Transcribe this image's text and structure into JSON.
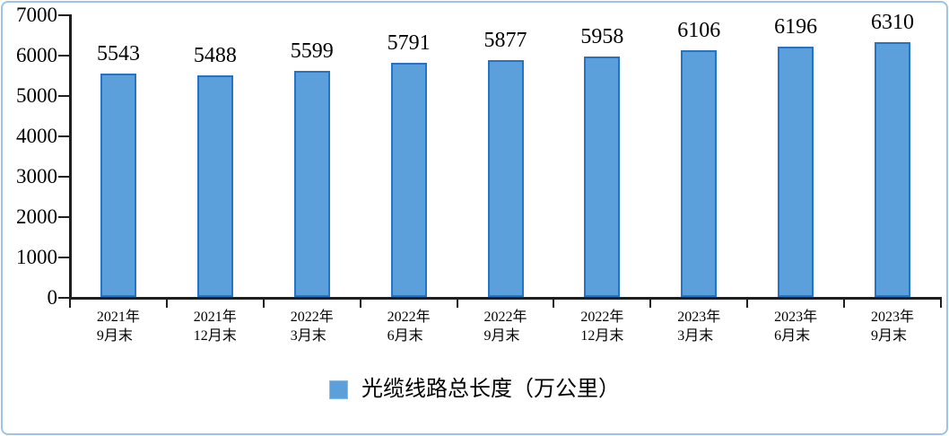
{
  "chart_data": {
    "type": "bar",
    "title": "",
    "categories": [
      "2021年\n9月末",
      "2021年\n12月末",
      "2022年\n3月末",
      "2022年\n6月末",
      "2022年\n9月末",
      "2022年\n12月末",
      "2023年\n3月末",
      "2023年\n6月末",
      "2023年\n9月末"
    ],
    "values": [
      5543,
      5488,
      5599,
      5791,
      5877,
      5958,
      6106,
      6196,
      6310
    ],
    "value_labels": [
      "5543",
      "5488",
      "5599",
      "5791",
      "5877",
      "5958",
      "6106",
      "6196",
      "6310"
    ],
    "legend": "光缆线路总长度（万公里）",
    "legend_position": "bottom",
    "xlabel": "",
    "ylabel": "",
    "ylim": [
      0,
      7000
    ],
    "yticks": [
      0,
      1000,
      2000,
      3000,
      4000,
      5000,
      6000,
      7000
    ],
    "ytick_labels": [
      "0",
      "1000",
      "2000",
      "3000",
      "4000",
      "5000",
      "6000",
      "7000"
    ],
    "grid": false,
    "bar_fill_color": "#5B9FDB",
    "bar_border_color": "#2374C9"
  },
  "colors": {
    "frame_border": "#9DC3E6",
    "axis": "#1f1f1f",
    "background": "#ffffff",
    "text": "#000000"
  }
}
